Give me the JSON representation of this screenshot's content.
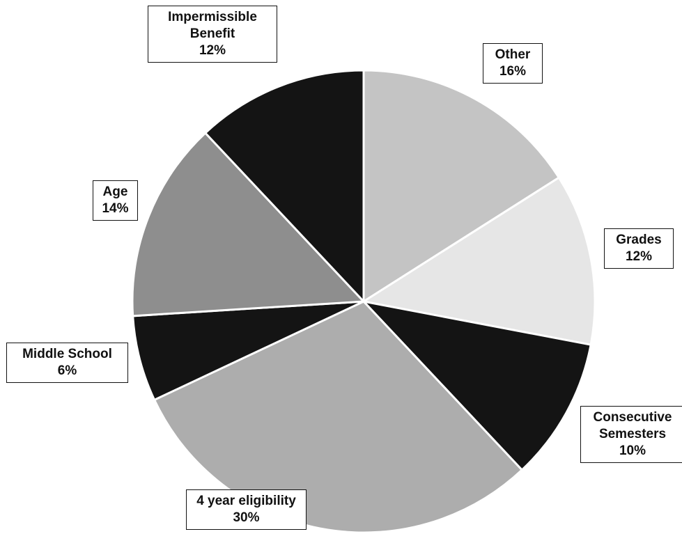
{
  "chart_data": {
    "type": "pie",
    "categories": [
      "Other",
      "Grades",
      "Consecutive Semesters",
      "4 year eligibility",
      "Middle School",
      "Age",
      "Impermissible Benefit"
    ],
    "values": [
      16,
      12,
      10,
      30,
      6,
      14,
      12
    ],
    "value_labels": [
      "16%",
      "12%",
      "10%",
      "30%",
      "6%",
      "14%",
      "12%"
    ],
    "colors": [
      "#c4c4c4",
      "#e6e6e6",
      "#141414",
      "#adadad",
      "#141414",
      "#8e8e8e",
      "#141414"
    ]
  }
}
